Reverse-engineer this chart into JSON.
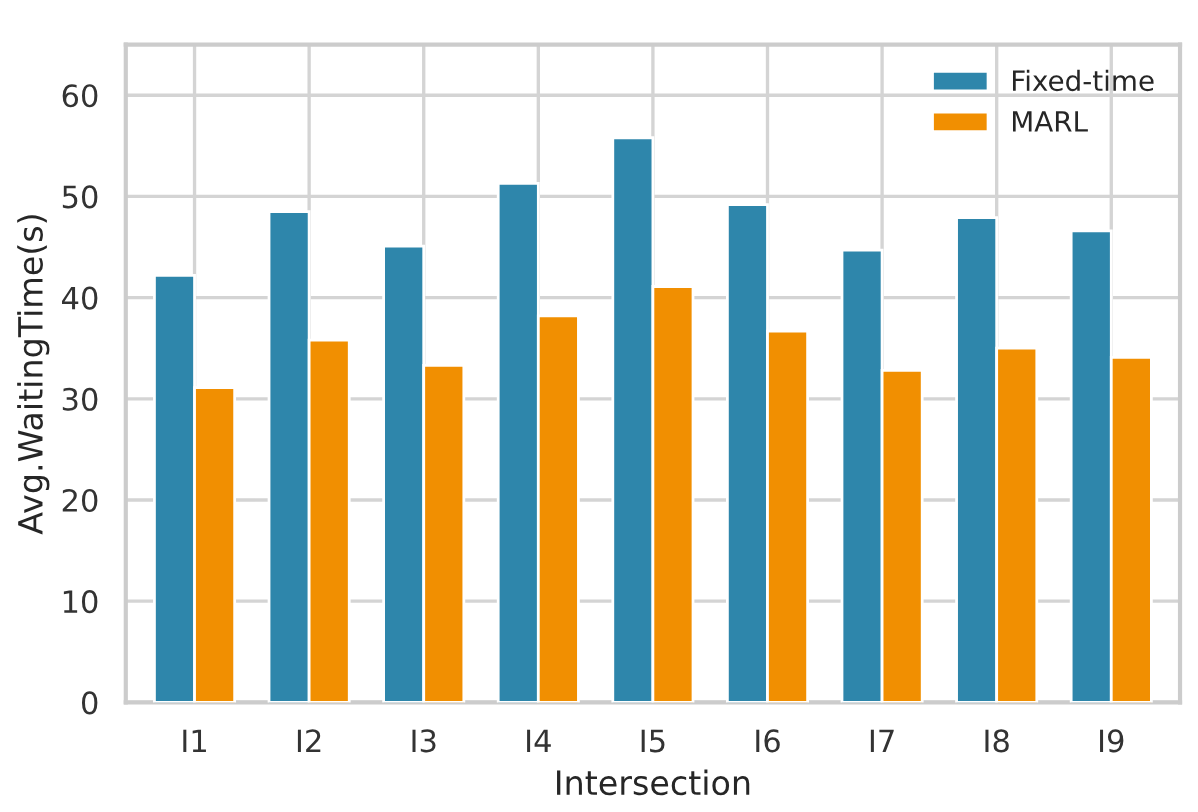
{
  "chart_data": {
    "type": "bar",
    "xlabel": "Intersection",
    "ylabel": "Avg.WaitingTime(s)",
    "categories": [
      "I1",
      "I2",
      "I3",
      "I4",
      "I5",
      "I6",
      "I7",
      "I8",
      "I9"
    ],
    "series": [
      {
        "name": "Fixed-time",
        "color": "#2e86ab",
        "values": [
          42.2,
          48.5,
          45.1,
          51.3,
          55.8,
          49.2,
          44.7,
          47.9,
          46.6
        ]
      },
      {
        "name": "MARL",
        "color": "#f18f01",
        "values": [
          31.1,
          35.8,
          33.3,
          38.2,
          41.1,
          36.7,
          32.8,
          35.0,
          34.1
        ]
      }
    ],
    "ylim": [
      0,
      65
    ],
    "yticks": [
      0,
      10,
      20,
      30,
      40,
      50,
      60
    ],
    "grid": true,
    "legend": "top right"
  }
}
